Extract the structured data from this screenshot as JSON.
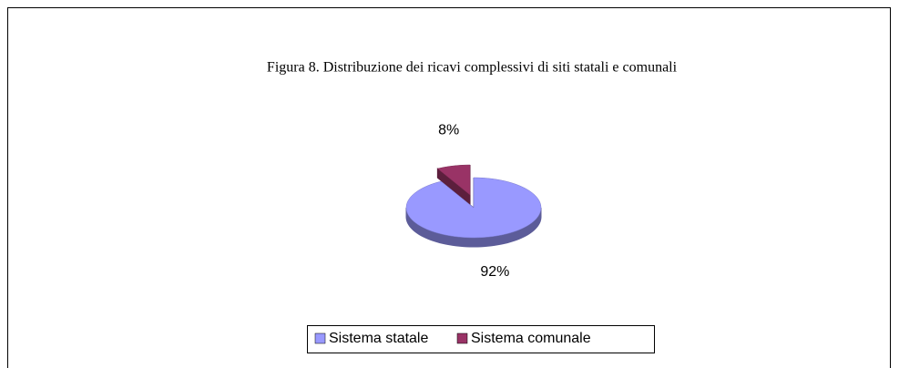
{
  "chart_data": {
    "type": "pie",
    "title": "Figura 8. Distribuzione dei ricavi complessivi di siti statali e comunali",
    "categories": [
      "Sistema statale",
      "Sistema comunale"
    ],
    "values": [
      92,
      8
    ],
    "value_labels": [
      "92%",
      "8%"
    ],
    "colors": [
      "#9999ff",
      "#993366"
    ],
    "legend": "bottom"
  }
}
